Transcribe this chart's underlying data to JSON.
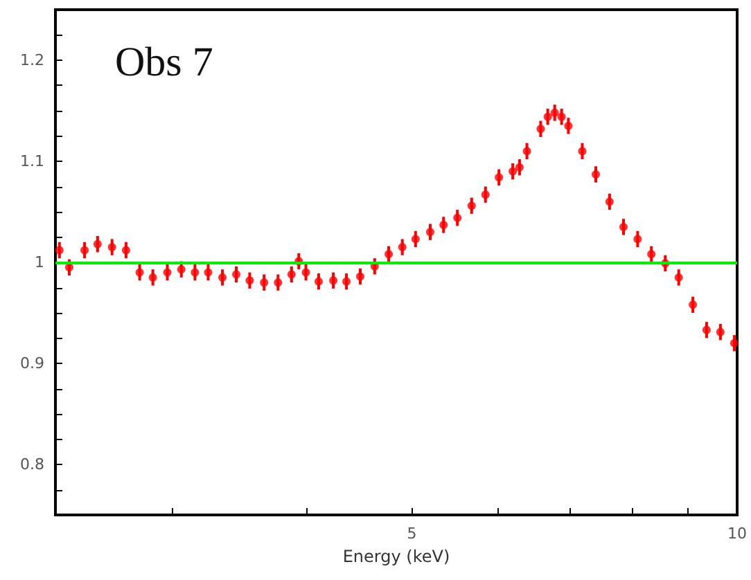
{
  "chart_data": {
    "type": "scatter",
    "title": "Obs 7",
    "xlabel": "Energy (keV)",
    "log": "x",
    "xlim": [
      2.34,
      10
    ],
    "xticks": [
      {
        "value": 3,
        "label": null
      },
      {
        "value": 4,
        "label": null
      },
      5,
      {
        "value": 6,
        "label": null
      },
      {
        "value": 7,
        "label": null
      },
      {
        "value": 8,
        "label": null
      },
      {
        "value": 9,
        "label": null
      },
      10
    ],
    "ylim": [
      0.75,
      1.25
    ],
    "yticks": [
      {
        "value": 0.775,
        "label": null
      },
      0.8,
      {
        "value": 0.825,
        "label": null
      },
      {
        "value": 0.85,
        "label": null
      },
      {
        "value": 0.875,
        "label": null
      },
      0.9,
      {
        "value": 0.925,
        "label": null
      },
      {
        "value": 0.95,
        "label": null
      },
      {
        "value": 0.975,
        "label": null
      },
      1,
      {
        "value": 1.025,
        "label": null
      },
      {
        "value": 1.05,
        "label": null
      },
      {
        "value": 1.075,
        "label": null
      },
      1.1,
      {
        "value": 1.125,
        "label": null
      },
      {
        "value": 1.15,
        "label": null
      },
      {
        "value": 1.175,
        "label": null
      },
      1.2,
      {
        "value": 1.225,
        "label": null
      }
    ],
    "grid": false,
    "marker": "circle",
    "ref_lines": [
      {
        "axis": "y",
        "value": 1,
        "color": "#00ee00",
        "line_style": "solid"
      }
    ],
    "series": [
      {
        "color": "#ff0000",
        "x": [
          2.36,
          2.41,
          2.49,
          2.56,
          2.64,
          2.72,
          2.8,
          2.88,
          2.97,
          3.06,
          3.15,
          3.24,
          3.34,
          3.44,
          3.54,
          3.65,
          3.76,
          3.87,
          3.93,
          3.99,
          4.1,
          4.23,
          4.35,
          4.48,
          4.62,
          4.76,
          4.9,
          5.04,
          5.2,
          5.35,
          5.51,
          5.68,
          5.85,
          6.02,
          6.2,
          6.29,
          6.39,
          6.58,
          6.68,
          6.78,
          6.88,
          6.98,
          7.19,
          7.4,
          7.62,
          7.85,
          8.09,
          8.33,
          8.58,
          8.83,
          9.1,
          9.37,
          9.65,
          9.94
        ],
        "values": [
          1.012,
          0.995,
          1.012,
          1.018,
          1.015,
          1.012,
          0.99,
          0.985,
          0.99,
          0.993,
          0.99,
          0.99,
          0.985,
          0.988,
          0.982,
          0.98,
          0.98,
          0.988,
          1.001,
          0.99,
          0.981,
          0.982,
          0.981,
          0.986,
          0.996,
          1.008,
          1.015,
          1.023,
          1.03,
          1.037,
          1.044,
          1.056,
          1.067,
          1.084,
          1.09,
          1.094,
          1.11,
          1.132,
          1.144,
          1.148,
          1.144,
          1.135,
          1.11,
          1.087,
          1.06,
          1.035,
          1.023,
          1.008,
          0.999,
          0.985,
          0.958,
          0.933,
          0.931,
          0.92
        ],
        "errors": [
          0.008,
          0.008,
          0.008,
          0.008,
          0.008,
          0.008,
          0.008,
          0.008,
          0.008,
          0.008,
          0.008,
          0.008,
          0.008,
          0.008,
          0.008,
          0.008,
          0.008,
          0.008,
          0.008,
          0.008,
          0.008,
          0.008,
          0.008,
          0.008,
          0.008,
          0.008,
          0.008,
          0.008,
          0.008,
          0.008,
          0.008,
          0.008,
          0.008,
          0.008,
          0.008,
          0.008,
          0.008,
          0.008,
          0.008,
          0.008,
          0.008,
          0.008,
          0.008,
          0.008,
          0.008,
          0.008,
          0.008,
          0.008,
          0.008,
          0.008,
          0.008,
          0.008,
          0.008,
          0.008
        ]
      }
    ]
  }
}
